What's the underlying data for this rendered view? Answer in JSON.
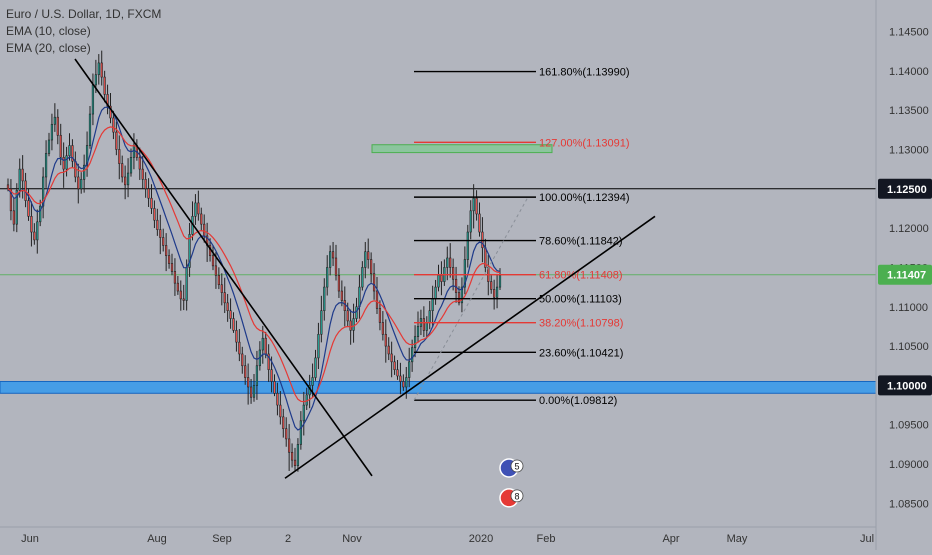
{
  "legend": {
    "symbol": "Euro / U.S. Dollar, 1D, FXCM",
    "ema10": "EMA (10, close)",
    "ema20": "EMA (20, close)"
  },
  "colors": {
    "background": "#b2b5be",
    "up_candle": "#26a69a",
    "down_candle": "#ef5350",
    "ema10": "#1e3a8a",
    "ema20": "#e53935",
    "trendline": "#000000",
    "support_band": "#2196f3",
    "target_box": "#81c995",
    "fib_black": "#000000",
    "fib_red": "#e53935"
  },
  "chart_data": {
    "type": "candlestick",
    "title": "Euro / U.S. Dollar, 1D, FXCM",
    "ylim": [
      1.082,
      1.149
    ],
    "y_ticks": [
      "1.14500",
      "1.14000",
      "1.13500",
      "1.13000",
      "1.12500",
      "1.12000",
      "1.11500",
      "1.11000",
      "1.10500",
      "1.10000",
      "1.09500",
      "1.09000",
      "1.08500"
    ],
    "x_ticks": [
      "Jun",
      "Aug",
      "Sep",
      "2",
      "Nov",
      "2020",
      "Feb",
      "Apr",
      "May",
      "Jul"
    ],
    "price_labels": [
      {
        "text": "1.12500",
        "value": 1.125,
        "style": "dark"
      },
      {
        "text": "1.11407",
        "value": 1.11407,
        "style": "green"
      },
      {
        "text": "1.10000",
        "value": 1.1,
        "style": "dark"
      }
    ],
    "horizontal_lines": [
      1.125,
      1.11407
    ],
    "support_band": [
      1.099,
      1.1005
    ],
    "target_box": [
      1.1296,
      1.1306
    ],
    "fib_levels": [
      {
        "label": "161.80%(1.13990)",
        "value": 1.1399,
        "color": "black"
      },
      {
        "label": "127.00%(1.13091)",
        "value": 1.13091,
        "color": "red"
      },
      {
        "label": "100.00%(1.12394)",
        "value": 1.12394,
        "color": "black"
      },
      {
        "label": "78.60%(1.11842)",
        "value": 1.11842,
        "color": "black"
      },
      {
        "label": "61.80%(1.11408)",
        "value": 1.11408,
        "color": "red"
      },
      {
        "label": "50.00%(1.11103)",
        "value": 1.11103,
        "color": "black"
      },
      {
        "label": "38.20%(1.10798)",
        "value": 1.10798,
        "color": "red"
      },
      {
        "label": "23.60%(1.10421)",
        "value": 1.10421,
        "color": "black"
      },
      {
        "label": "0.00%(1.09812)",
        "value": 1.09812,
        "color": "black"
      }
    ],
    "trendlines": [
      {
        "name": "downtrend",
        "from": {
          "date": "2019-06-25",
          "value": 1.1415
        },
        "to": {
          "date": "2019-10-30",
          "value": 1.0885
        }
      },
      {
        "name": "uptrend",
        "from": {
          "date": "2019-09-30",
          "value": 1.0882
        },
        "to": {
          "date": "2020-01-26",
          "value": 1.1215
        }
      }
    ],
    "event_badges": [
      "5",
      "8"
    ],
    "closes": [
      1.125,
      1.1222,
      1.1205,
      1.1248,
      1.1275,
      1.126,
      1.1235,
      1.1215,
      1.1195,
      1.1185,
      1.1208,
      1.1228,
      1.1265,
      1.1295,
      1.1312,
      1.1332,
      1.1341,
      1.1318,
      1.129,
      1.1275,
      1.1292,
      1.1305,
      1.1285,
      1.1265,
      1.125,
      1.1262,
      1.128,
      1.1305,
      1.1345,
      1.1382,
      1.1395,
      1.141,
      1.1392,
      1.137,
      1.1355,
      1.134,
      1.1322,
      1.13,
      1.1282,
      1.1265,
      1.1255,
      1.127,
      1.129,
      1.1305,
      1.129,
      1.1275,
      1.1262,
      1.125,
      1.1238,
      1.1225,
      1.121,
      1.1198,
      1.1188,
      1.1178,
      1.1165,
      1.1155,
      1.1145,
      1.113,
      1.112,
      1.111,
      1.1108,
      1.115,
      1.1192,
      1.1215,
      1.1232,
      1.1218,
      1.1205,
      1.119,
      1.1178,
      1.1165,
      1.1152,
      1.114,
      1.1128,
      1.1118,
      1.1105,
      1.1095,
      1.1085,
      1.107,
      1.1055,
      1.104,
      1.1025,
      1.101,
      1.0998,
      1.0985,
      1.1,
      1.1025,
      1.1045,
      1.106,
      1.104,
      1.102,
      1.1005,
      1.099,
      1.0975,
      1.096,
      1.0945,
      1.0932,
      1.0915,
      1.0905,
      1.0898,
      1.0925,
      1.0955,
      1.0975,
      1.0988,
      1.1,
      1.101,
      1.1035,
      1.1065,
      1.1095,
      1.1125,
      1.115,
      1.117,
      1.1162,
      1.114,
      1.112,
      1.1108,
      1.1095,
      1.1082,
      1.107,
      1.1085,
      1.11,
      1.1125,
      1.115,
      1.117,
      1.116,
      1.1142,
      1.112,
      1.1098,
      1.108,
      1.1065,
      1.105,
      1.104,
      1.103,
      1.102,
      1.1012,
      1.1005,
      1.0998,
      1.101,
      1.103,
      1.1048,
      1.1062,
      1.1075,
      1.1085,
      1.107,
      1.108,
      1.1095,
      1.111,
      1.1125,
      1.114,
      1.1132,
      1.115,
      1.1162,
      1.115,
      1.1135,
      1.1118,
      1.1105,
      1.1125,
      1.116,
      1.1195,
      1.1222,
      1.1238,
      1.1218,
      1.1195,
      1.1175,
      1.115,
      1.1132,
      1.1122,
      1.1112,
      1.1125,
      1.114
    ]
  }
}
